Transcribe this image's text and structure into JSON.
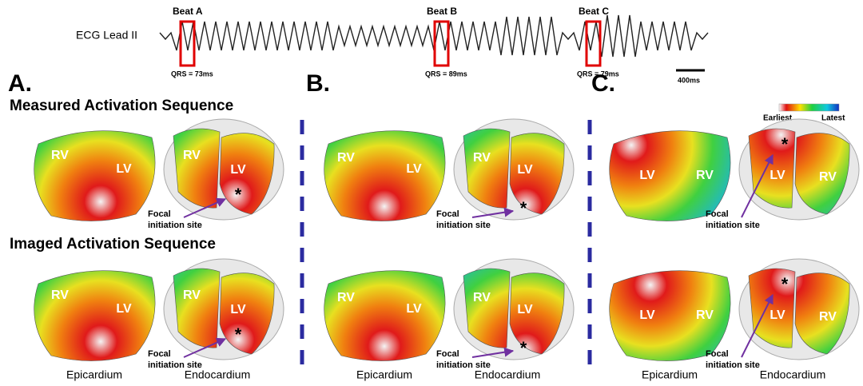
{
  "ecg": {
    "label": "ECG Lead II",
    "beats": [
      {
        "name": "Beat A",
        "qrs": "QRS = 73ms"
      },
      {
        "name": "Beat B",
        "qrs": "QRS = 89ms"
      },
      {
        "name": "Beat C",
        "qrs": "QRS = 79ms"
      }
    ],
    "scale_bar": "400ms"
  },
  "row_titles": [
    "Measured Activation Sequence",
    "Imaged Activation Sequence"
  ],
  "colorbar": {
    "min_label": "Earliest",
    "max_label": "Latest"
  },
  "panels": [
    {
      "label": "A.",
      "columns": [
        "Epicardium",
        "Endocardium"
      ],
      "rows": [
        {
          "epi": [
            "RV",
            "LV"
          ],
          "endo": [
            "RV",
            "LV",
            "*"
          ],
          "annotation": [
            "Focal",
            "initiation site"
          ]
        },
        {
          "epi": [
            "RV",
            "LV"
          ],
          "endo": [
            "RV",
            "LV",
            "*"
          ],
          "annotation": [
            "Focal",
            "initiation site"
          ]
        }
      ]
    },
    {
      "label": "B.",
      "columns": [
        "Epicardium",
        "Endocardium"
      ],
      "rows": [
        {
          "epi": [
            "RV",
            "LV"
          ],
          "endo": [
            "RV",
            "LV",
            "*"
          ],
          "annotation": [
            "Focal",
            "initiation site"
          ]
        },
        {
          "epi": [
            "RV",
            "LV"
          ],
          "endo": [
            "RV",
            "LV",
            "*"
          ],
          "annotation": [
            "Focal",
            "initiation site"
          ]
        }
      ]
    },
    {
      "label": "C.",
      "columns": [
        "Epicardium",
        "Endocardium"
      ],
      "rows": [
        {
          "epi": [
            "LV",
            "RV"
          ],
          "endo": [
            "LV",
            "RV",
            "*"
          ],
          "annotation": [
            "Focal",
            "initiation site"
          ]
        },
        {
          "epi": [
            "LV",
            "RV"
          ],
          "endo": [
            "LV",
            "RV",
            "*"
          ],
          "annotation": [
            "Focal",
            "initiation site"
          ]
        }
      ]
    }
  ]
}
